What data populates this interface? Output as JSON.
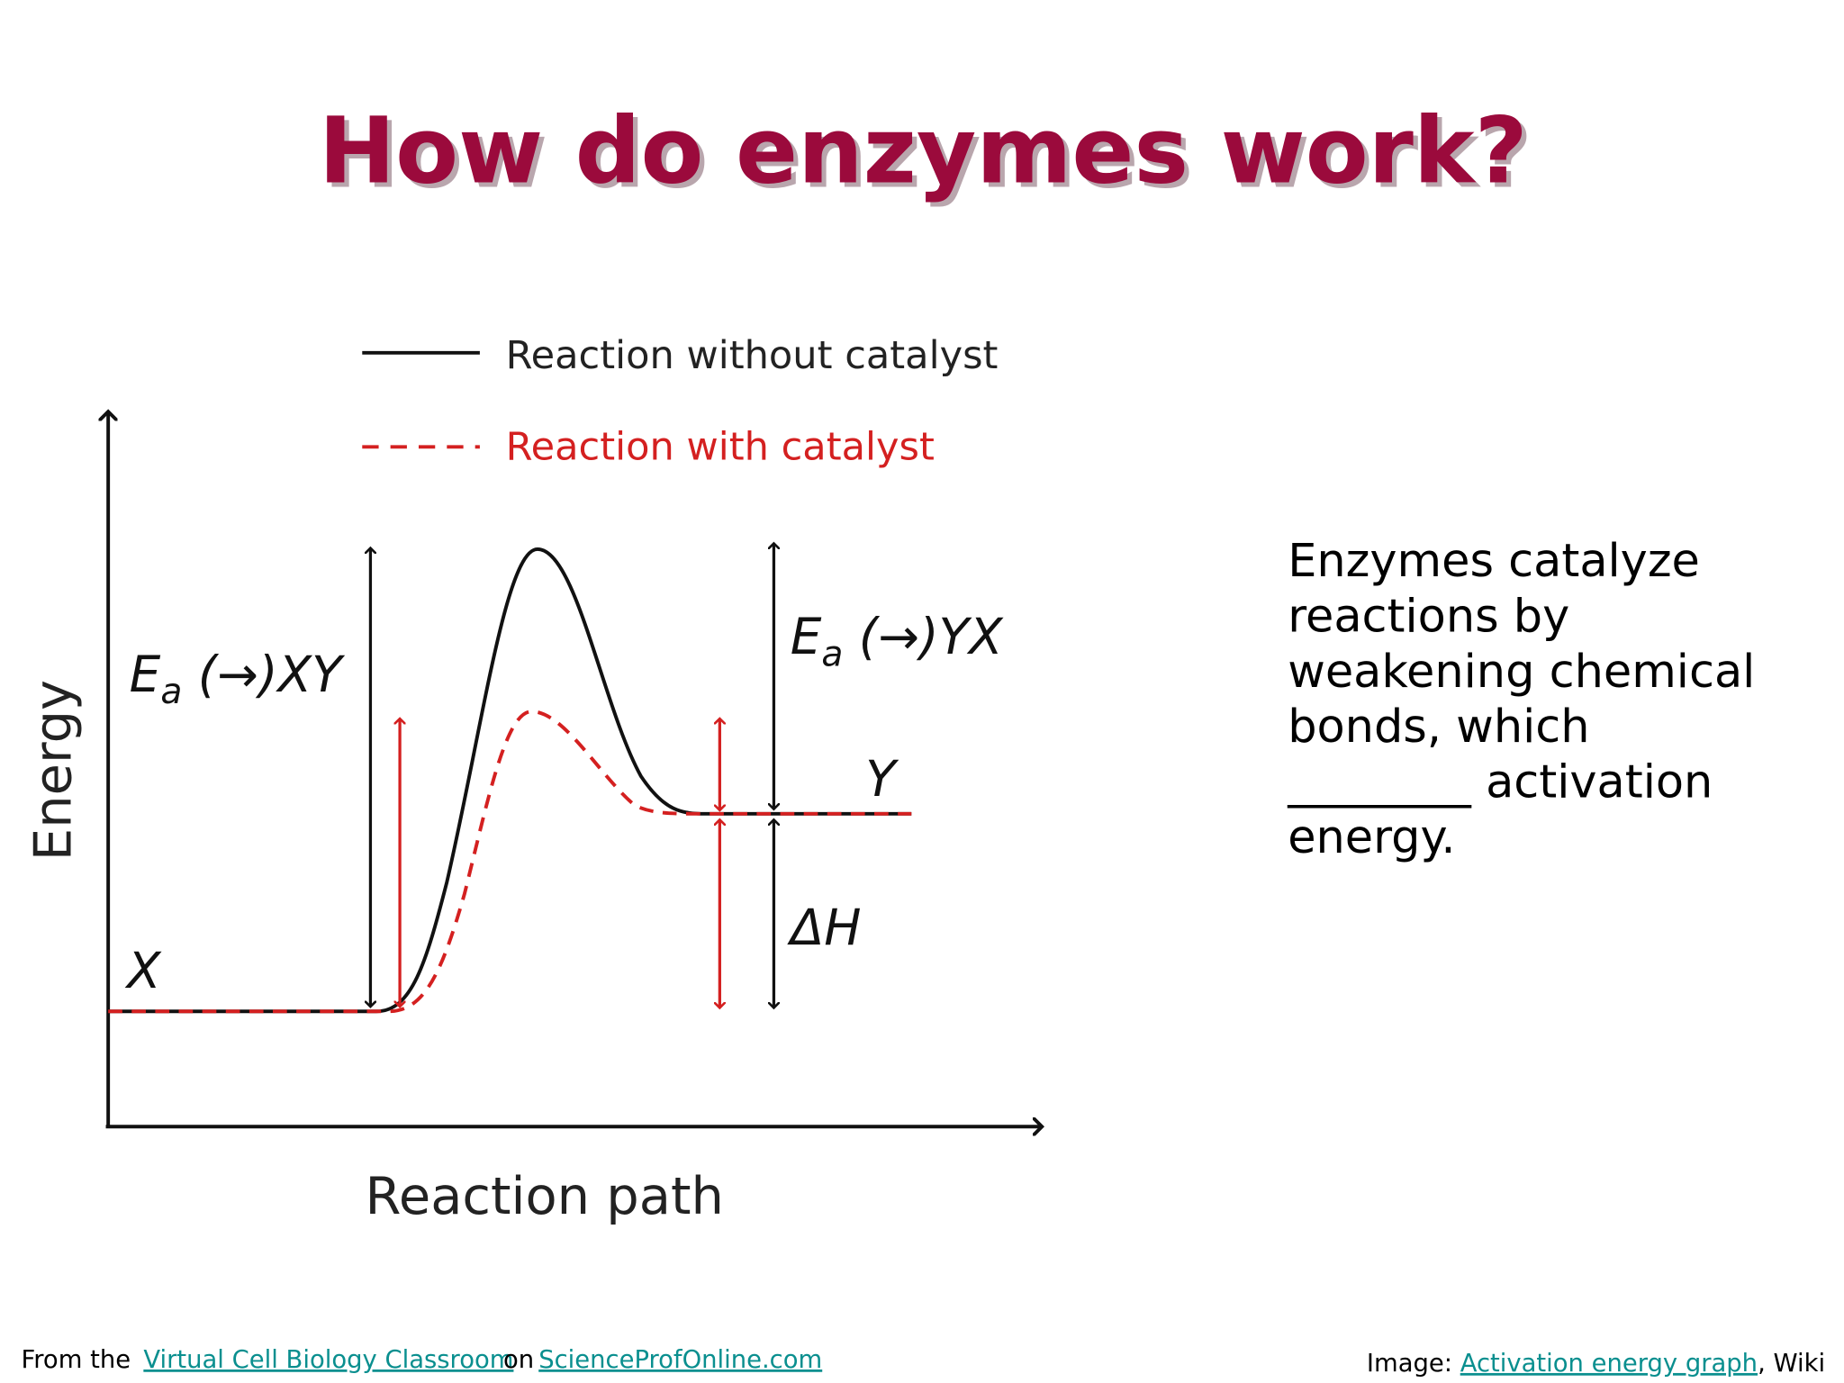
{
  "title": "How do enzymes work?",
  "diagram": {
    "legend": [
      "Reaction without catalyst",
      "Reaction with catalyst"
    ],
    "y_axis_label": "Energy",
    "x_axis_label": "Reaction path",
    "ea_forward": {
      "symbol": "E",
      "subscript": "a",
      "text": " (→)XY"
    },
    "ea_reverse": {
      "symbol": "E",
      "subscript": "a",
      "text": " (→)YX"
    },
    "reactant": "X",
    "product": "Y",
    "enthalpy": "ΔH"
  },
  "body": {
    "lines": [
      "Enzymes catalyze",
      "reactions by",
      "weakening chemical",
      "bonds, which",
      "________ activation",
      "energy."
    ]
  },
  "footer": {
    "left": {
      "prefix": "From the",
      "link1": "Virtual Cell Biology Classroom",
      "middle": "on",
      "link2": "ScienceProfOnline.com"
    },
    "right": {
      "prefix": "Image: ",
      "link": "Activation energy graph",
      "suffix": ", Wiki"
    }
  }
}
